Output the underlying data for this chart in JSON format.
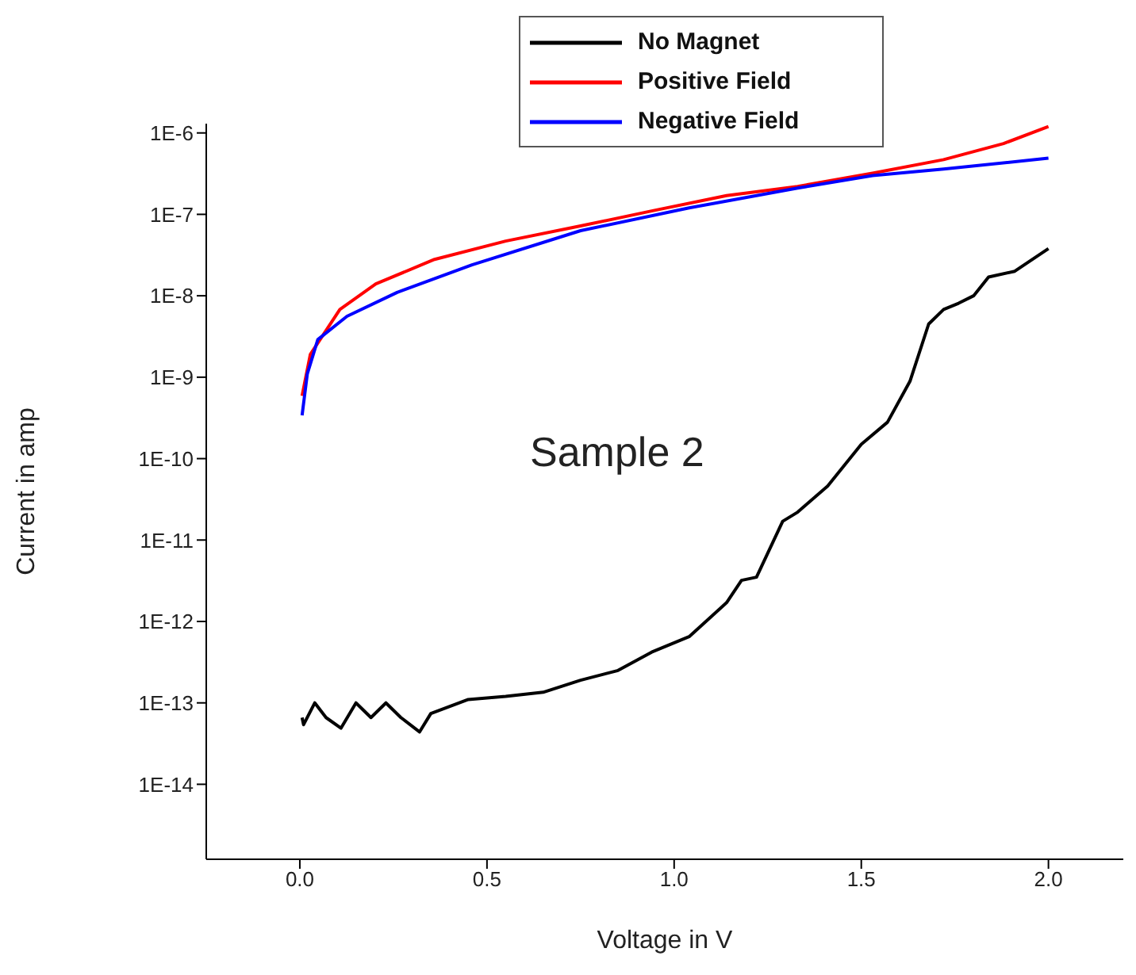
{
  "chart_data": {
    "type": "line",
    "xlabel": "Voltage in V",
    "ylabel": "Current in amp",
    "annotations": [
      "Sample 2"
    ],
    "log": "y",
    "legend": "top",
    "marker": "none",
    "line_style": "solid",
    "xlim": [
      -0.25,
      2.2
    ],
    "xticks": [
      {
        "value": 0,
        "label": "0.0"
      },
      0.5,
      {
        "value": 1,
        "label": "1.0"
      },
      1.5,
      {
        "value": 2,
        "label": "2.0"
      }
    ],
    "ylim": [
      1.2e-15,
      1.3e-06
    ],
    "yticks": [
      {
        "value": 1e-14,
        "label": "1E-14"
      },
      {
        "value": 1e-13,
        "label": "1E-13"
      },
      {
        "value": 1e-12,
        "label": "1E-12"
      },
      {
        "value": 1e-11,
        "label": "1E-11"
      },
      {
        "value": 1e-10,
        "label": "1E-10"
      },
      {
        "value": 1e-09,
        "label": "1E-9"
      },
      {
        "value": 1e-08,
        "label": "1E-8"
      },
      {
        "value": 1e-07,
        "label": "1E-7"
      },
      {
        "value": 1e-06,
        "label": "1E-6"
      }
    ],
    "series": [
      {
        "name": "No Magnet",
        "color": "#000000",
        "x": [
          0.006,
          0.01,
          0.04,
          0.07,
          0.11,
          0.15,
          0.19,
          0.23,
          0.27,
          0.32,
          0.35,
          0.45,
          0.55,
          0.65,
          0.75,
          0.85,
          0.94,
          1.04,
          1.14,
          1.18,
          1.22,
          1.29,
          1.33,
          1.41,
          1.5,
          1.57,
          1.63,
          1.68,
          1.72,
          1.76,
          1.8,
          1.84,
          1.91,
          2.0
        ],
        "values": [
          6.6e-14,
          5.4e-14,
          1e-13,
          6.6e-14,
          4.9e-14,
          1e-13,
          6.6e-14,
          1e-13,
          6.6e-14,
          4.4e-14,
          7.4e-14,
          1.1e-13,
          1.2e-13,
          1.35e-13,
          1.9e-13,
          2.5e-13,
          4.2e-13,
          6.5e-13,
          1.7e-12,
          3.2e-12,
          3.5e-12,
          1.7e-11,
          2.2e-11,
          4.6e-11,
          1.5e-10,
          2.8e-10,
          8.9e-10,
          4.5e-09,
          6.8e-09,
          8.1e-09,
          1e-08,
          1.7e-08,
          2e-08,
          3.8e-08
        ]
      },
      {
        "name": "Positive Field",
        "color": "#ff0000",
        "x": [
          0.006,
          0.028,
          0.107,
          0.203,
          0.36,
          0.55,
          0.75,
          0.94,
          1.14,
          1.33,
          1.53,
          1.72,
          1.88,
          2.0
        ],
        "values": [
          5.9e-10,
          1.9e-09,
          6.8e-09,
          1.4e-08,
          2.8e-08,
          4.7e-08,
          7.2e-08,
          1.1e-07,
          1.7e-07,
          2.2e-07,
          3.2e-07,
          4.7e-07,
          7.4e-07,
          1.2e-06
        ]
      },
      {
        "name": "Negative Field",
        "color": "#0000ff",
        "x": [
          0.006,
          0.02,
          0.048,
          0.126,
          0.26,
          0.46,
          0.75,
          1.04,
          1.33,
          1.53,
          1.72,
          2.0
        ],
        "values": [
          3.4e-10,
          1.1e-09,
          2.9e-09,
          5.6e-09,
          1.1e-08,
          2.4e-08,
          6.3e-08,
          1.2e-07,
          2.1e-07,
          3e-07,
          3.6e-07,
          4.9e-07
        ]
      }
    ]
  }
}
